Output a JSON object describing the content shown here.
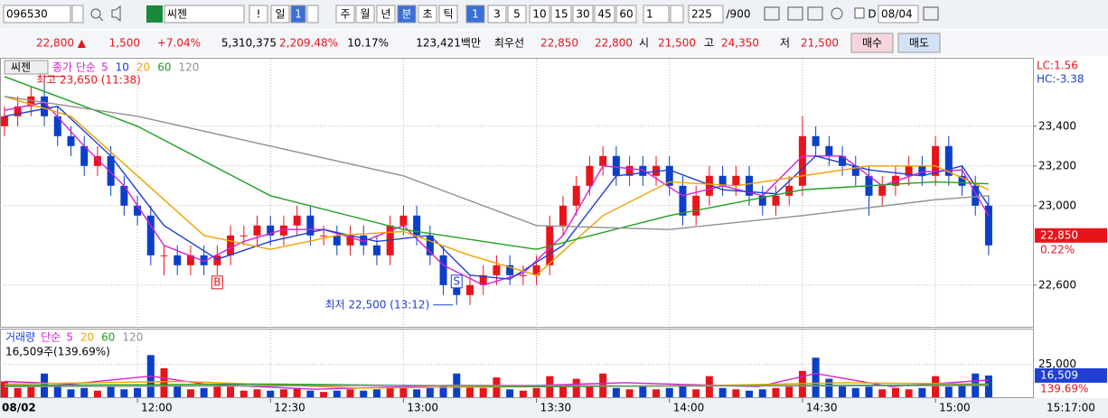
{
  "toolbar": {
    "items": [
      "096530",
      "씨젠",
      "!",
      "일",
      "1",
      "주",
      "월",
      "년",
      "분",
      "초",
      "틱",
      "1",
      "3",
      "5",
      "10",
      "15",
      "30",
      "45",
      "60",
      "1",
      "225",
      "/900",
      "D",
      "08/04"
    ]
  },
  "info": {
    "items": [
      "22,800 ▲",
      "1,500",
      "+7.04%",
      "5,310,375",
      "2,209.48%",
      "10.17%",
      "123,421백만",
      "최우선",
      "22,850",
      "22,800",
      "시",
      "21,500",
      "고",
      "24,350",
      "저",
      "21,500",
      "매수",
      "매도"
    ]
  },
  "chart_data": [
    {
      "type": "candlestick",
      "title": "씨젠",
      "legend_label": "종가 단순",
      "lc": "LC:1.56",
      "hc": "HC:-3.38",
      "up_color": "#e8141b",
      "down_color": "#0a3fc9",
      "xlim": [
        689,
        922
      ],
      "ylim": [
        22390,
        23740
      ],
      "yticks": [
        {
          "value": 22600,
          "label": "22,600"
        },
        {
          "value": 23000,
          "label": "23,000"
        },
        {
          "value": 23200,
          "label": "23,200"
        },
        {
          "value": 23400,
          "label": "23,400"
        }
      ],
      "last": {
        "value": 22850,
        "label": "22,850",
        "change": "0.22%"
      },
      "annotations": [
        {
          "text": "최고 23,650 (11:38)",
          "x": 698,
          "y": 23650
        },
        {
          "text": "최저 22,500 (13:12)",
          "x": 792,
          "y": 22500
        },
        {
          "text": "B",
          "x": 738,
          "y": 22650
        },
        {
          "text": "S",
          "x": 792,
          "y": 22600
        }
      ],
      "x": [
        690,
        693,
        696,
        699,
        702,
        705,
        708,
        711,
        714,
        717,
        720,
        723,
        726,
        729,
        732,
        735,
        738,
        741,
        744,
        747,
        750,
        753,
        756,
        759,
        762,
        765,
        768,
        771,
        774,
        777,
        780,
        783,
        786,
        789,
        792,
        795,
        798,
        801,
        804,
        807,
        810,
        813,
        816,
        819,
        822,
        825,
        828,
        831,
        834,
        837,
        840,
        843,
        846,
        849,
        852,
        855,
        858,
        861,
        864,
        867,
        870,
        873,
        876,
        879,
        882,
        885,
        888,
        891,
        894,
        897,
        900,
        903,
        906,
        909,
        912
      ],
      "candles": [
        [
          23400,
          23500,
          23350,
          23450
        ],
        [
          23450,
          23550,
          23400,
          23500
        ],
        [
          23500,
          23600,
          23450,
          23550
        ],
        [
          23550,
          23650,
          23400,
          23450
        ],
        [
          23450,
          23500,
          23300,
          23350
        ],
        [
          23350,
          23400,
          23250,
          23300
        ],
        [
          23300,
          23350,
          23150,
          23200
        ],
        [
          23200,
          23300,
          23150,
          23250
        ],
        [
          23250,
          23300,
          23050,
          23100
        ],
        [
          23100,
          23150,
          22950,
          23000
        ],
        [
          23000,
          23050,
          22900,
          22950
        ],
        [
          22950,
          23000,
          22700,
          22750
        ],
        [
          22750,
          22800,
          22650,
          22750
        ],
        [
          22750,
          22800,
          22650,
          22700
        ],
        [
          22700,
          22800,
          22650,
          22750
        ],
        [
          22750,
          22800,
          22650,
          22700
        ],
        [
          22700,
          22800,
          22650,
          22750
        ],
        [
          22750,
          22900,
          22700,
          22850
        ],
        [
          22850,
          22900,
          22800,
          22850
        ],
        [
          22850,
          22950,
          22800,
          22900
        ],
        [
          22900,
          22950,
          22800,
          22850
        ],
        [
          22850,
          22950,
          22800,
          22900
        ],
        [
          22900,
          23000,
          22850,
          22950
        ],
        [
          22950,
          23000,
          22800,
          22850
        ],
        [
          22850,
          22900,
          22800,
          22850
        ],
        [
          22850,
          22900,
          22750,
          22800
        ],
        [
          22800,
          22900,
          22750,
          22850
        ],
        [
          22850,
          22900,
          22750,
          22800
        ],
        [
          22800,
          22850,
          22700,
          22750
        ],
        [
          22750,
          22950,
          22700,
          22900
        ],
        [
          22900,
          23000,
          22850,
          22950
        ],
        [
          22950,
          23000,
          22800,
          22850
        ],
        [
          22850,
          22900,
          22700,
          22750
        ],
        [
          22750,
          22800,
          22550,
          22600
        ],
        [
          22600,
          22650,
          22500,
          22550
        ],
        [
          22550,
          22650,
          22500,
          22600
        ],
        [
          22600,
          22700,
          22550,
          22650
        ],
        [
          22650,
          22750,
          22600,
          22700
        ],
        [
          22700,
          22750,
          22600,
          22650
        ],
        [
          22650,
          22700,
          22600,
          22650
        ],
        [
          22650,
          22750,
          22600,
          22700
        ],
        [
          22700,
          22950,
          22650,
          22900
        ],
        [
          22900,
          23050,
          22850,
          23000
        ],
        [
          23000,
          23150,
          22950,
          23100
        ],
        [
          23100,
          23250,
          23050,
          23200
        ],
        [
          23200,
          23300,
          23150,
          23250
        ],
        [
          23250,
          23300,
          23100,
          23150
        ],
        [
          23150,
          23250,
          23100,
          23200
        ],
        [
          23200,
          23250,
          23100,
          23150
        ],
        [
          23150,
          23250,
          23100,
          23200
        ],
        [
          23200,
          23250,
          23050,
          23100
        ],
        [
          23100,
          23150,
          22900,
          22950
        ],
        [
          22950,
          23100,
          22900,
          23050
        ],
        [
          23050,
          23200,
          23000,
          23150
        ],
        [
          23150,
          23200,
          23050,
          23100
        ],
        [
          23100,
          23200,
          23050,
          23150
        ],
        [
          23150,
          23200,
          23000,
          23050
        ],
        [
          23050,
          23100,
          22950,
          23000
        ],
        [
          23000,
          23100,
          22950,
          23050
        ],
        [
          23050,
          23150,
          23000,
          23100
        ],
        [
          23100,
          23450,
          23050,
          23350
        ],
        [
          23350,
          23400,
          23250,
          23300
        ],
        [
          23300,
          23350,
          23200,
          23250
        ],
        [
          23250,
          23300,
          23150,
          23200
        ],
        [
          23200,
          23250,
          23100,
          23150
        ],
        [
          23150,
          23200,
          22950,
          23050
        ],
        [
          23050,
          23150,
          23000,
          23100
        ],
        [
          23100,
          23200,
          23050,
          23150
        ],
        [
          23150,
          23250,
          23100,
          23200
        ],
        [
          23200,
          23250,
          23100,
          23150
        ],
        [
          23150,
          23350,
          23100,
          23300
        ],
        [
          23300,
          23350,
          23100,
          23150
        ],
        [
          23150,
          23200,
          23050,
          23100
        ],
        [
          23100,
          23150,
          22950,
          23000
        ],
        [
          23000,
          23050,
          22750,
          22800
        ]
      ],
      "series": [
        {
          "name": "5",
          "color": "#d61fd6",
          "x": [
            690,
            699,
            708,
            717,
            726,
            735,
            744,
            753,
            762,
            771,
            780,
            789,
            798,
            807,
            816,
            825,
            834,
            843,
            852,
            861,
            870,
            879,
            888,
            897,
            906,
            912
          ],
          "values": [
            23480,
            23520,
            23300,
            23100,
            22800,
            22720,
            22820,
            22880,
            22880,
            22820,
            22900,
            22700,
            22600,
            22660,
            22850,
            23200,
            23180,
            23050,
            23100,
            23050,
            23250,
            23250,
            23100,
            23170,
            23180,
            22950
          ]
        },
        {
          "name": "10",
          "color": "#1f3fd6",
          "x": [
            690,
            702,
            714,
            726,
            738,
            750,
            762,
            774,
            786,
            795,
            804,
            816,
            828,
            840,
            852,
            864,
            873,
            885,
            897,
            906,
            912
          ],
          "values": [
            23450,
            23500,
            23250,
            22900,
            22730,
            22820,
            22880,
            22820,
            22850,
            22650,
            22630,
            22800,
            23150,
            23180,
            23080,
            23060,
            23250,
            23180,
            23150,
            23200,
            23000
          ]
        },
        {
          "name": "20",
          "color": "#f0a000",
          "x": [
            690,
            705,
            720,
            735,
            750,
            765,
            780,
            795,
            810,
            825,
            840,
            855,
            870,
            885,
            900,
            912
          ],
          "values": [
            23550,
            23450,
            23150,
            22850,
            22780,
            22850,
            22870,
            22750,
            22650,
            22950,
            23120,
            23100,
            23150,
            23200,
            23200,
            23080
          ]
        },
        {
          "name": "60",
          "color": "#1fa01f",
          "x": [
            690,
            720,
            750,
            780,
            810,
            840,
            870,
            900,
            912
          ],
          "values": [
            23650,
            23400,
            23050,
            22880,
            22780,
            22950,
            23080,
            23120,
            23110
          ]
        },
        {
          "name": "120",
          "color": "#909090",
          "x": [
            690,
            720,
            750,
            780,
            810,
            840,
            870,
            900,
            912
          ],
          "values": [
            23550,
            23450,
            23300,
            23150,
            22900,
            22880,
            22950,
            23030,
            23050
          ]
        }
      ]
    },
    {
      "type": "bar",
      "title": "거래량",
      "legend_label": "단순",
      "note": "16,509주(139.69%)",
      "xlim": [
        689,
        922
      ],
      "ylim": [
        0,
        50700
      ],
      "yticks": [
        {
          "value": 25000,
          "label": "25,000"
        }
      ],
      "last": {
        "value": 16509,
        "label": "16,509",
        "change": "139.69%"
      },
      "xticks": [
        {
          "value": 693,
          "label": "08/02"
        },
        {
          "value": 720,
          "label": "12:00"
        },
        {
          "value": 750,
          "label": "12:30"
        },
        {
          "value": 780,
          "label": "13:00"
        },
        {
          "value": 810,
          "label": "13:30"
        },
        {
          "value": 840,
          "label": "14:00"
        },
        {
          "value": 870,
          "label": "14:30"
        },
        {
          "value": 900,
          "label": "15:00"
        }
      ],
      "cursor_label": "15:17:00",
      "x": [
        690,
        693,
        696,
        699,
        702,
        705,
        708,
        711,
        714,
        717,
        720,
        723,
        726,
        729,
        732,
        735,
        738,
        741,
        744,
        747,
        750,
        753,
        756,
        759,
        762,
        765,
        768,
        771,
        774,
        777,
        780,
        783,
        786,
        789,
        792,
        795,
        798,
        801,
        804,
        807,
        810,
        813,
        816,
        819,
        822,
        825,
        828,
        831,
        834,
        837,
        840,
        843,
        846,
        849,
        852,
        855,
        858,
        861,
        864,
        867,
        870,
        873,
        876,
        879,
        882,
        885,
        888,
        891,
        894,
        897,
        900,
        903,
        906,
        909,
        912
      ],
      "values": [
        12000,
        7000,
        8000,
        18000,
        9000,
        6000,
        7000,
        5000,
        8000,
        6000,
        7000,
        32000,
        22000,
        9000,
        6000,
        7000,
        8000,
        8000,
        5000,
        6000,
        5000,
        6000,
        7000,
        5000,
        4000,
        5000,
        6000,
        5000,
        6000,
        8000,
        7000,
        6000,
        7000,
        9000,
        18000,
        8000,
        7000,
        15000,
        6000,
        5000,
        7000,
        16000,
        9000,
        14000,
        8000,
        18000,
        7000,
        6000,
        8000,
        6000,
        7000,
        9000,
        6000,
        16000,
        7000,
        6000,
        5000,
        6000,
        7000,
        8000,
        20000,
        30000,
        14000,
        9000,
        7000,
        8000,
        6000,
        7000,
        6000,
        7000,
        16000,
        8000,
        9000,
        18000,
        16509
      ],
      "series": [
        {
          "name": "5",
          "color": "#d61fd6",
          "x": [
            690,
            705,
            723,
            735,
            760,
            790,
            810,
            830,
            860,
            873,
            890,
            912
          ],
          "values": [
            12000,
            10000,
            16000,
            10000,
            6000,
            9000,
            9000,
            11000,
            8000,
            18000,
            8000,
            13000
          ]
        },
        {
          "name": "20",
          "color": "#f0a000",
          "x": [
            690,
            730,
            770,
            810,
            850,
            880,
            912
          ],
          "values": [
            10000,
            12000,
            7000,
            8000,
            9000,
            11000,
            10000
          ]
        },
        {
          "name": "60",
          "color": "#1fa01f",
          "x": [
            690,
            750,
            810,
            870,
            912
          ],
          "values": [
            9000,
            10000,
            8000,
            9000,
            9500
          ]
        },
        {
          "name": "120",
          "color": "#909090",
          "x": [
            690,
            780,
            870,
            912
          ],
          "values": [
            8000,
            9000,
            8500,
            9000
          ]
        }
      ]
    }
  ]
}
